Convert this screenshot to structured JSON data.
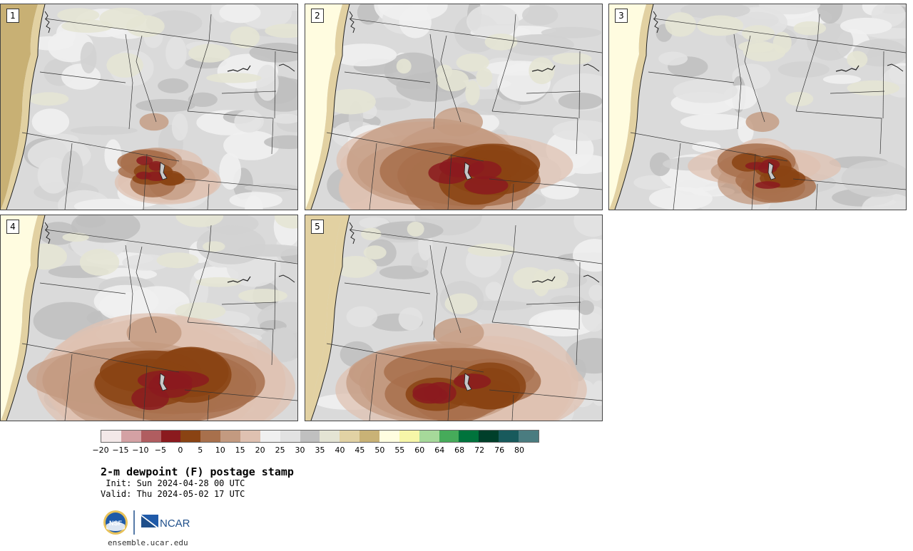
{
  "panels": [
    {
      "label": "1",
      "intensity": 0.35,
      "ocean": "#c8b074"
    },
    {
      "label": "2",
      "intensity": 0.8,
      "ocean": "#fffce0"
    },
    {
      "label": "3",
      "intensity": 0.45,
      "ocean": "#fffce0"
    },
    {
      "label": "4",
      "intensity": 0.95,
      "ocean": "#fffce0"
    },
    {
      "label": "5",
      "intensity": 0.85,
      "ocean": "#e2d1a2"
    }
  ],
  "colorbar": {
    "colors": [
      "#f3e8e8",
      "#d4a1a4",
      "#b05d60",
      "#8b1a1e",
      "#8a4313",
      "#a8704c",
      "#c39a80",
      "#dfc1b1",
      "#f0f0f0",
      "#e2e2e2",
      "#c0c0c0",
      "#e4e4d4",
      "#e2d2a4",
      "#c9b276",
      "#fffde0",
      "#f7f6a8",
      "#a6d99a",
      "#46ab5a",
      "#00733c",
      "#003f2a",
      "#185a5c",
      "#4a7c80"
    ],
    "ticks": [
      "−20",
      "−15",
      "−10",
      "−5",
      "0",
      "5",
      "10",
      "15",
      "20",
      "25",
      "30",
      "35",
      "40",
      "45",
      "50",
      "55",
      "60",
      "64",
      "68",
      "72",
      "76",
      "80"
    ]
  },
  "title": "2-m dewpoint (F) postage stamp",
  "init": " Init: Sun 2024-04-28 00 UTC",
  "valid": "Valid: Thu 2024-05-02 17 UTC",
  "logos": {
    "nsf_text": "NSF",
    "ncar_text": "NCAR"
  },
  "website": "ensemble.ucar.edu"
}
